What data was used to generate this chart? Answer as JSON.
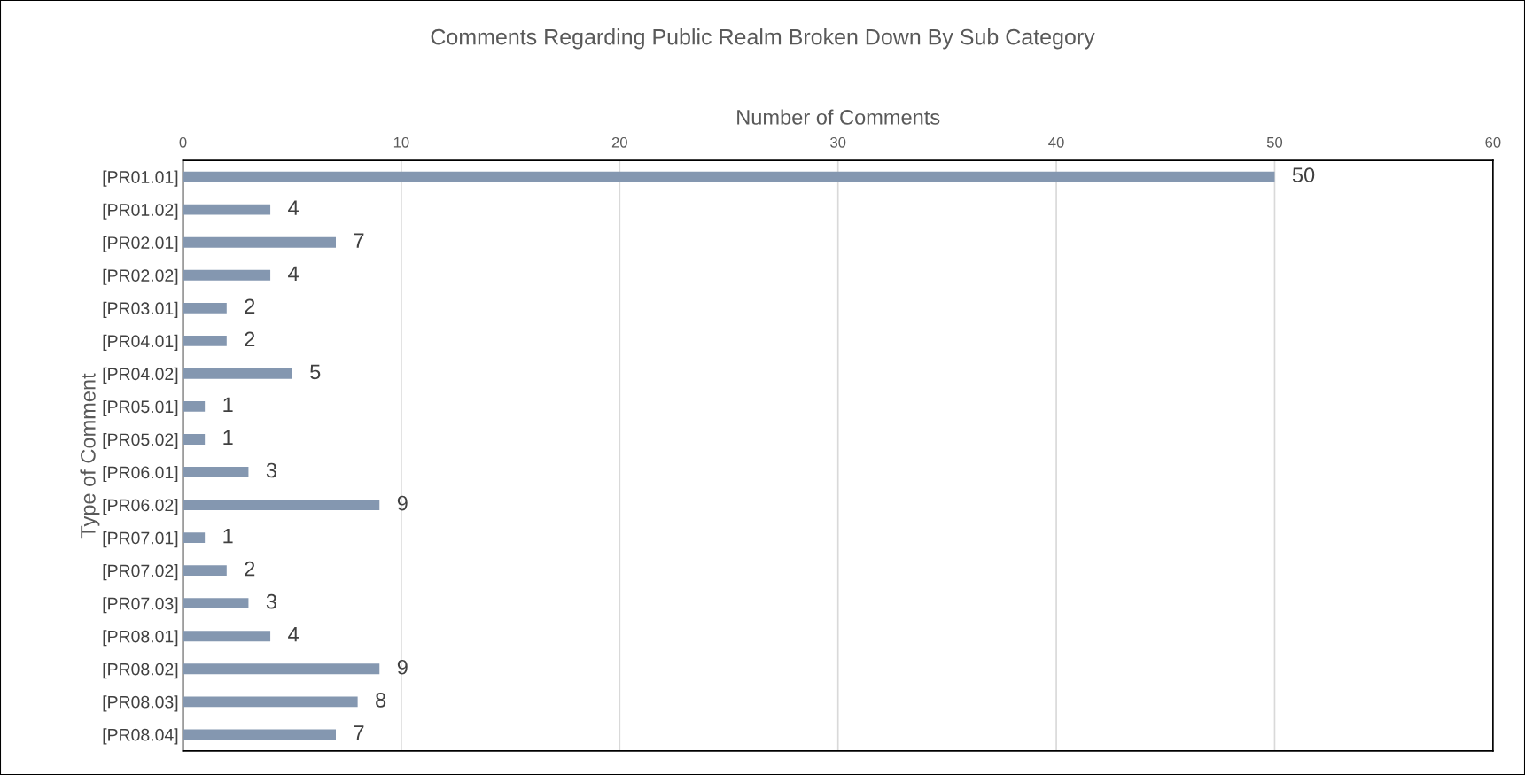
{
  "chart_data": {
    "type": "bar",
    "orientation": "horizontal",
    "title": "Comments Regarding Public Realm Broken Down By Sub Category",
    "xlabel": "Number of Comments",
    "ylabel": "Type of Comment",
    "categories": [
      "[PR01.01]",
      "[PR01.02]",
      "[PR02.01]",
      "[PR02.02]",
      "[PR03.01]",
      "[PR04.01]",
      "[PR04.02]",
      "[PR05.01]",
      "[PR05.02]",
      "[PR06.01]",
      "[PR06.02]",
      "[PR07.01]",
      "[PR07.02]",
      "[PR07.03]",
      "[PR08.01]",
      "[PR08.02]",
      "[PR08.03]",
      "[PR08.04]"
    ],
    "values": [
      50,
      4,
      7,
      4,
      2,
      2,
      5,
      1,
      1,
      3,
      9,
      1,
      2,
      3,
      4,
      9,
      8,
      7
    ],
    "color": "#8497b0",
    "xlim": [
      0,
      60
    ],
    "xticks": [
      0,
      10,
      20,
      30,
      40,
      50,
      60
    ],
    "grid": "x",
    "data_labels": true
  }
}
